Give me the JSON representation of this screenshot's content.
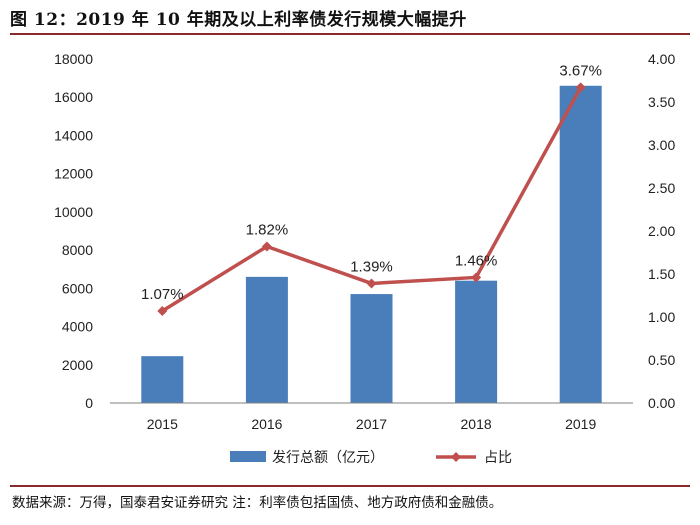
{
  "title": "图 12：2019 年 10 年期及以上利率债发行规模大幅提升",
  "source": "数据来源：万得，国泰君安证券研究    注：利率债包括国债、地方政府债和金融债。",
  "colors": {
    "bar": "#4a7ebb",
    "line": "#c0504d",
    "rule": "#8a2a2a"
  },
  "chart_data": {
    "type": "bar+line",
    "categories": [
      "2015",
      "2016",
      "2017",
      "2018",
      "2019"
    ],
    "series": [
      {
        "name": "发行总额（亿元）",
        "type": "bar",
        "axis": "left",
        "values": [
          2450,
          6600,
          5700,
          6400,
          16600
        ]
      },
      {
        "name": "占比",
        "type": "line",
        "axis": "right",
        "values": [
          1.07,
          1.82,
          1.39,
          1.46,
          3.67
        ],
        "labels": [
          "1.07%",
          "1.82%",
          "1.39%",
          "1.46%",
          "3.67%"
        ]
      }
    ],
    "y_left": {
      "min": 0,
      "max": 18000,
      "step": 2000,
      "ticks": [
        "0",
        "2000",
        "4000",
        "6000",
        "8000",
        "10000",
        "12000",
        "14000",
        "16000",
        "18000"
      ]
    },
    "y_right": {
      "min": 0,
      "max": 4,
      "step": 0.5,
      "ticks": [
        "0.00",
        "0.50",
        "1.00",
        "1.50",
        "2.00",
        "2.50",
        "3.00",
        "3.50",
        "4.00"
      ]
    },
    "legend": [
      "发行总额（亿元）",
      "占比"
    ],
    "grid": false
  }
}
